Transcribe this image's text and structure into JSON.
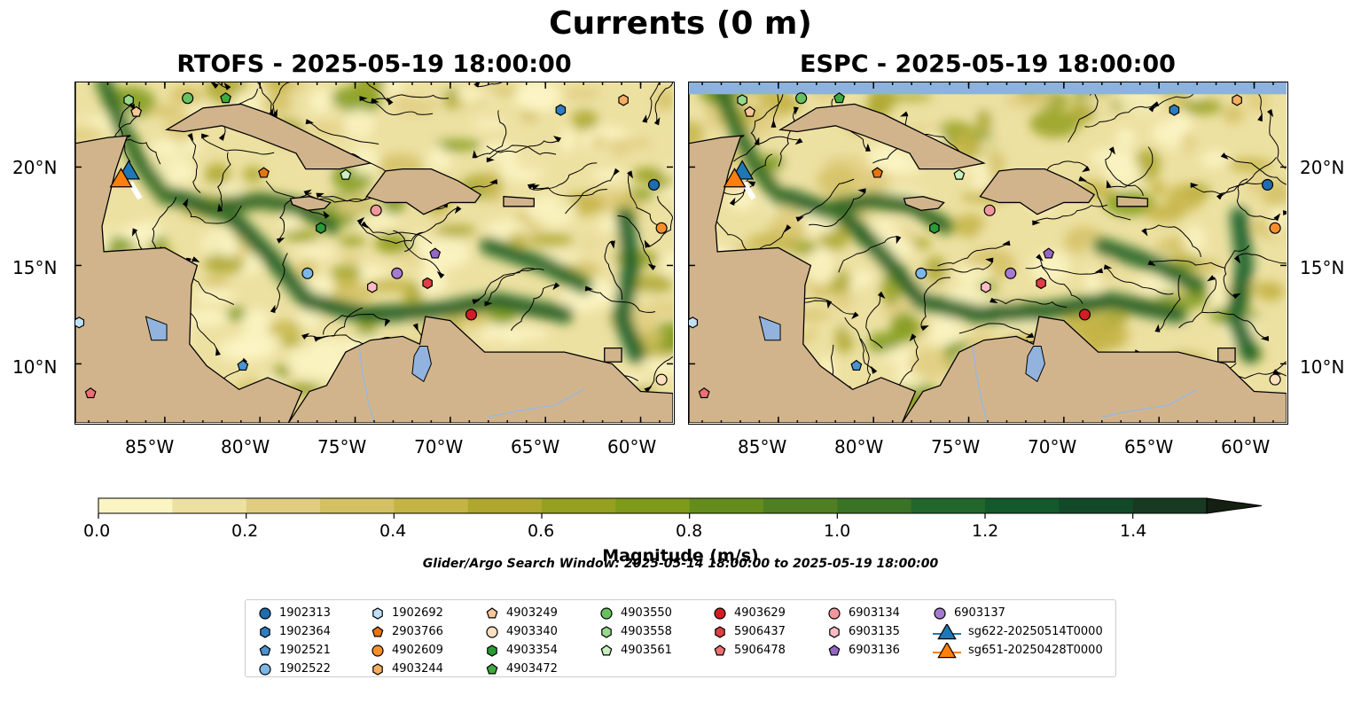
{
  "figure": {
    "title": "Currents (0 m)",
    "search_window": "Glider/Argo Search Window: 2025-05-14 18:00:00 to 2025-05-19 18:00:00"
  },
  "panels": [
    {
      "title": "RTOFS - 2025-05-19 18:00:00",
      "model": "RTOFS"
    },
    {
      "title": "ESPC - 2025-05-19 18:00:00",
      "model": "ESPC"
    }
  ],
  "axes": {
    "lon_labels": [
      "85°W",
      "80°W",
      "75°W",
      "70°W",
      "65°W",
      "60°W"
    ],
    "lat_labels": [
      "20°N",
      "15°N",
      "10°N"
    ],
    "lon_range": [
      -89.7,
      -58.3
    ],
    "lat_range": [
      7.0,
      24.3
    ]
  },
  "colorbar": {
    "label": "Magnitude (m/s)",
    "ticks": [
      "0.0",
      "0.2",
      "0.4",
      "0.6",
      "0.8",
      "1.0",
      "1.2",
      "1.4"
    ],
    "range": [
      0.0,
      1.5
    ],
    "extend": "max",
    "colors": [
      "#fbf5c4",
      "#ede1a2",
      "#e0cd80",
      "#d3c164",
      "#c4b446",
      "#ada72f",
      "#95a020",
      "#7f9a1a",
      "#648c1d",
      "#4f7f22",
      "#3a7326",
      "#23662b",
      "#13592b",
      "#124a29",
      "#183a22",
      "#1b2b1a",
      "#141f12"
    ]
  },
  "colors": {
    "land": "#d2b48c",
    "lake": "#91b3dd",
    "river": "#9cb7d8",
    "espc_nodata": "#8db3dc"
  },
  "legend": [
    {
      "label": "1902313",
      "marker": "circle",
      "color": "#1f6cb0"
    },
    {
      "label": "1902364",
      "marker": "hexagon",
      "color": "#2f7dc1"
    },
    {
      "label": "1902521",
      "marker": "pentagon",
      "color": "#4a92d0"
    },
    {
      "label": "1902522",
      "marker": "circle",
      "color": "#7db7e6"
    },
    {
      "label": "1902692",
      "marker": "hexagon",
      "color": "#bfe0f6"
    },
    {
      "label": "2903766",
      "marker": "pentagon",
      "color": "#e8740f"
    },
    {
      "label": "4902609",
      "marker": "circle",
      "color": "#f58f2a"
    },
    {
      "label": "4903244",
      "marker": "hexagon",
      "color": "#f7ad62"
    },
    {
      "label": "4903249",
      "marker": "pentagon",
      "color": "#f9c797"
    },
    {
      "label": "4903340",
      "marker": "circle",
      "color": "#fde0c0"
    },
    {
      "label": "4903354",
      "marker": "hexagon",
      "color": "#2a9a34"
    },
    {
      "label": "4903472",
      "marker": "pentagon",
      "color": "#3dab3e"
    },
    {
      "label": "4903550",
      "marker": "circle",
      "color": "#67c160"
    },
    {
      "label": "4903558",
      "marker": "hexagon",
      "color": "#96d88c"
    },
    {
      "label": "4903561",
      "marker": "pentagon",
      "color": "#c8efbe"
    },
    {
      "label": "4903629",
      "marker": "circle",
      "color": "#d11e25"
    },
    {
      "label": "5906437",
      "marker": "hexagon",
      "color": "#dc3f45"
    },
    {
      "label": "5906478",
      "marker": "pentagon",
      "color": "#ec6f74"
    },
    {
      "label": "6903134",
      "marker": "circle",
      "color": "#f2979e"
    },
    {
      "label": "6903135",
      "marker": "hexagon",
      "color": "#f9bcc4"
    },
    {
      "label": "6903136",
      "marker": "pentagon",
      "color": "#9567c5"
    },
    {
      "label": "6903137",
      "marker": "circle",
      "color": "#a47bcf"
    },
    {
      "label": "sg622-20250514T0000",
      "marker": "triangle",
      "color": "#1f77b4"
    },
    {
      "label": "sg651-20250428T0000",
      "marker": "triangle",
      "color": "#ff7f0e"
    }
  ],
  "floats": [
    {
      "id": "1902313",
      "lon": -59.3,
      "lat": 19.1
    },
    {
      "id": "1902364",
      "lon": -64.2,
      "lat": 22.9
    },
    {
      "id": "1902521",
      "lon": -80.9,
      "lat": 9.9
    },
    {
      "id": "1902522",
      "lon": -77.5,
      "lat": 14.6
    },
    {
      "id": "1902692",
      "lon": -89.5,
      "lat": 12.1
    },
    {
      "id": "2903766",
      "lon": -79.8,
      "lat": 19.7
    },
    {
      "id": "4902609",
      "lon": -58.9,
      "lat": 16.9
    },
    {
      "id": "4903244",
      "lon": -60.9,
      "lat": 23.4
    },
    {
      "id": "4903249",
      "lon": -86.5,
      "lat": 22.8
    },
    {
      "id": "4903340",
      "lon": -58.9,
      "lat": 9.2
    },
    {
      "id": "4903354",
      "lon": -76.8,
      "lat": 16.9
    },
    {
      "id": "4903472",
      "lon": -81.8,
      "lat": 23.5
    },
    {
      "id": "4903550",
      "lon": -83.8,
      "lat": 23.5
    },
    {
      "id": "4903558",
      "lon": -86.9,
      "lat": 23.4
    },
    {
      "id": "4903561",
      "lon": -75.5,
      "lat": 19.6
    },
    {
      "id": "4903629",
      "lon": -68.9,
      "lat": 12.5
    },
    {
      "id": "5906437",
      "lon": -71.2,
      "lat": 14.1
    },
    {
      "id": "5906478",
      "lon": -88.9,
      "lat": 8.5
    },
    {
      "id": "6903134",
      "lon": -73.9,
      "lat": 17.8
    },
    {
      "id": "6903135",
      "lon": -74.1,
      "lat": 13.9
    },
    {
      "id": "6903136",
      "lon": -70.8,
      "lat": 15.6
    },
    {
      "id": "6903137",
      "lon": -72.8,
      "lat": 14.6
    }
  ],
  "gliders": [
    {
      "id": "sg622-20250514T0000",
      "lon": -86.9,
      "lat": 19.7
    },
    {
      "id": "sg651-20250428T0000",
      "lon": -87.3,
      "lat": 19.3
    }
  ]
}
